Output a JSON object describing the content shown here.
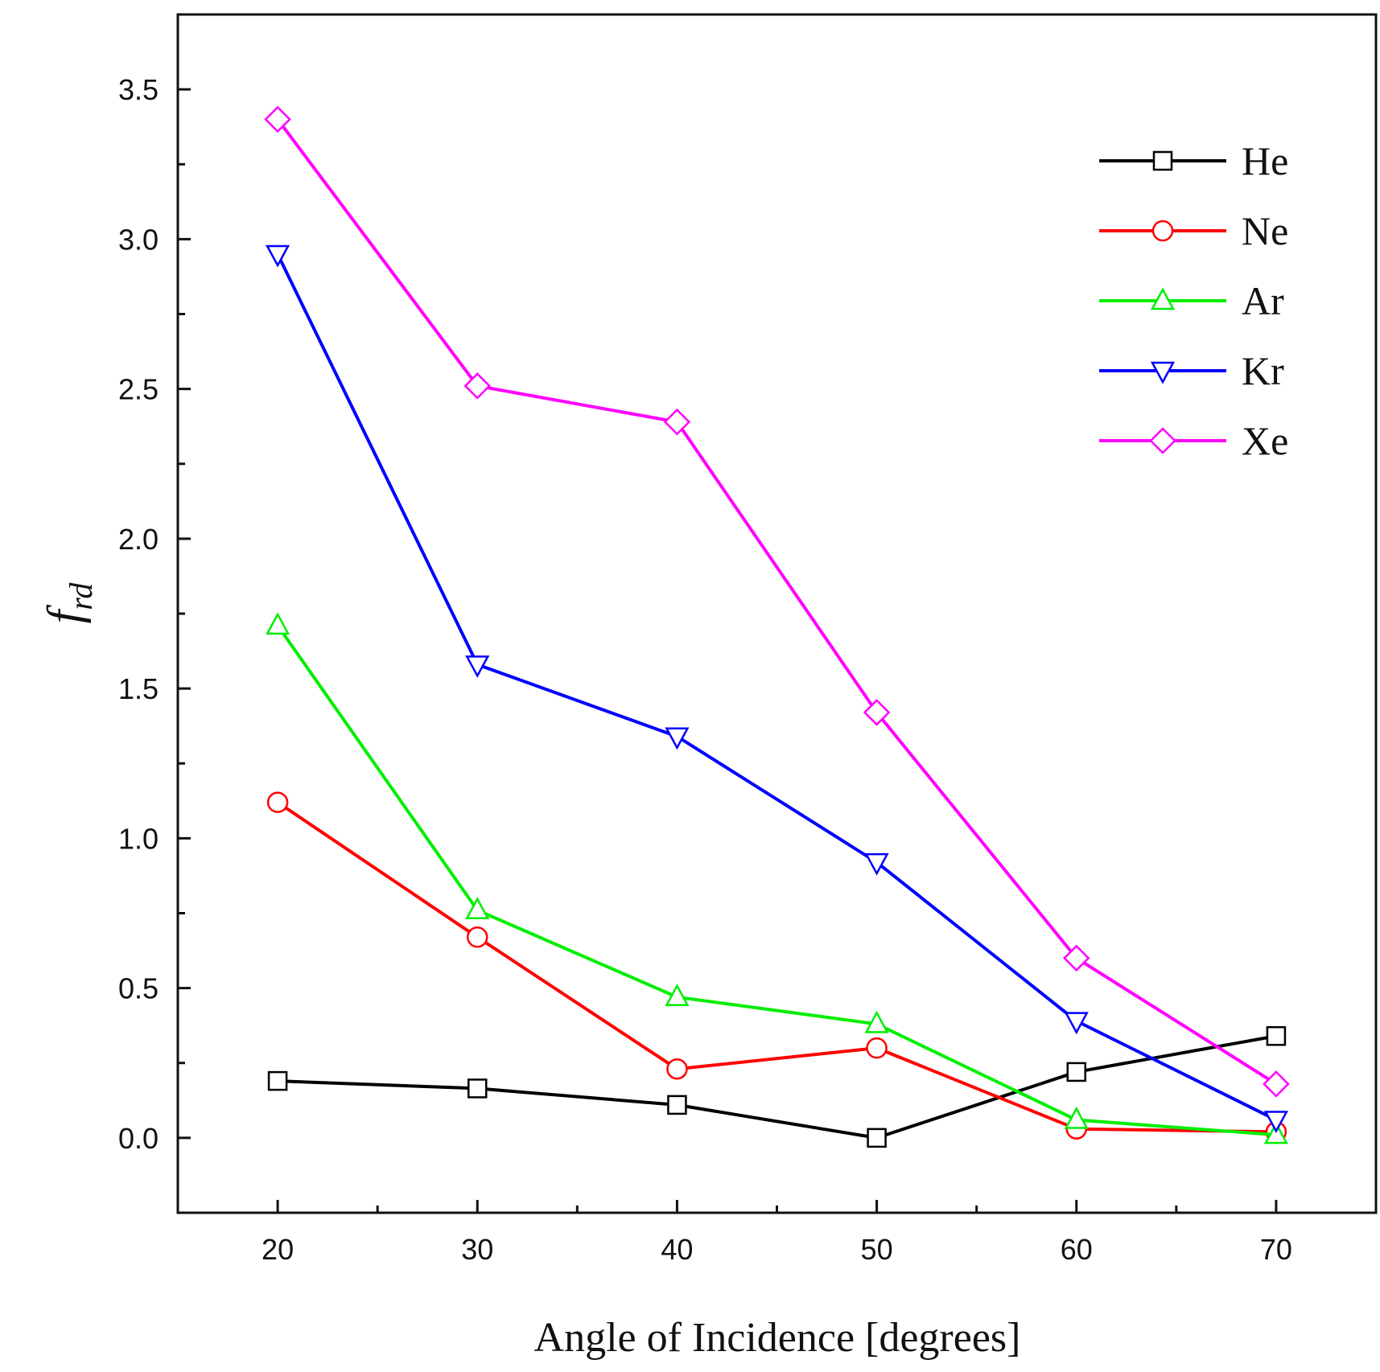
{
  "chart_data": {
    "type": "line",
    "title": "",
    "xlabel": "Angle of Incidence [degrees]",
    "ylabel": {
      "main": "f",
      "subscript": "rd"
    },
    "x": [
      20,
      30,
      40,
      50,
      60,
      70
    ],
    "xlim": [
      15,
      75
    ],
    "ylim": [
      -0.25,
      3.75
    ],
    "xticks": [
      20,
      30,
      40,
      50,
      60,
      70
    ],
    "xtick_labels": [
      "20",
      "30",
      "40",
      "50",
      "60",
      "70"
    ],
    "yticks": [
      0.0,
      0.5,
      1.0,
      1.5,
      2.0,
      2.5,
      3.0,
      3.5
    ],
    "ytick_labels": [
      "0.0",
      "0.5",
      "1.0",
      "1.5",
      "2.0",
      "2.5",
      "3.0",
      "3.5"
    ],
    "grid": false,
    "legend_position": "top-right",
    "series": [
      {
        "name": "He",
        "color": "#000000",
        "marker": "square",
        "values": [
          0.19,
          0.165,
          0.11,
          0.0,
          0.22,
          0.34
        ]
      },
      {
        "name": "Ne",
        "color": "#ff0000",
        "marker": "circle",
        "values": [
          1.12,
          0.67,
          0.23,
          0.3,
          0.03,
          0.02
        ]
      },
      {
        "name": "Ar",
        "color": "#00ee00",
        "marker": "triangle-up",
        "values": [
          1.71,
          0.76,
          0.47,
          0.38,
          0.06,
          0.01
        ]
      },
      {
        "name": "Kr",
        "color": "#0000ff",
        "marker": "triangle-down",
        "values": [
          2.95,
          1.58,
          1.34,
          0.92,
          0.39,
          0.06
        ]
      },
      {
        "name": "Xe",
        "color": "#ff00ff",
        "marker": "diamond",
        "values": [
          3.4,
          2.51,
          2.39,
          1.42,
          0.6,
          0.18
        ]
      }
    ]
  }
}
